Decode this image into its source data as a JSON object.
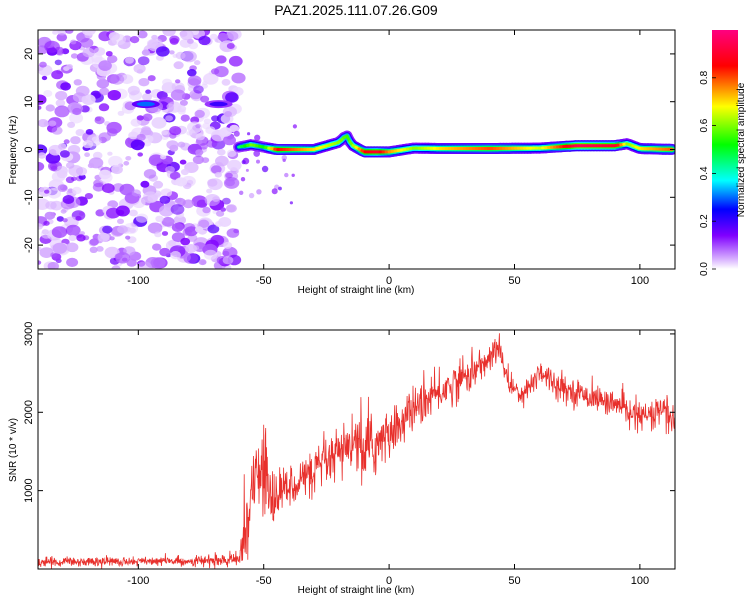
{
  "figure": {
    "title": "PAZ1.2025.111.07.26.G09"
  },
  "chart_data": [
    {
      "type": "heatmap",
      "xlabel": "Height of straight line (km)",
      "ylabel": "Frequency (Hz)",
      "xlim": [
        -140,
        114
      ],
      "ylim": [
        -25,
        25
      ],
      "xticks": [
        -100,
        -50,
        0,
        50,
        100
      ],
      "yticks": [
        -20,
        -10,
        0,
        10,
        20
      ],
      "colorbar": {
        "label": "Normalized spectral amplitude",
        "range": [
          0,
          1
        ],
        "ticks": [
          "0.0",
          "0.2",
          "0.4",
          "0.6",
          "0.8"
        ],
        "colors": [
          "#ffffff",
          "#d9b3ff",
          "#8000ff",
          "#0000ff",
          "#00ffff",
          "#00ff00",
          "#ffff00",
          "#ff0000",
          "#ff0080"
        ]
      },
      "ridge": {
        "x": [
          -60,
          -55,
          -50,
          -45,
          -40,
          -30,
          -20,
          -17,
          -15,
          -10,
          -5,
          0,
          10,
          20,
          40,
          60,
          75,
          90,
          95,
          100,
          114
        ],
        "freq_hz": [
          0.5,
          1.0,
          0.5,
          0,
          0,
          0,
          1.5,
          3.0,
          1.0,
          -0.5,
          -0.5,
          -0.5,
          0.3,
          0.2,
          0.2,
          0.3,
          0.8,
          0.8,
          1.2,
          0.2,
          0.0
        ],
        "amplitude": [
          0.45,
          0.6,
          0.5,
          0.85,
          0.8,
          0.7,
          0.6,
          0.55,
          0.6,
          0.85,
          0.9,
          0.75,
          0.6,
          0.7,
          0.8,
          0.65,
          0.95,
          0.9,
          0.6,
          0.7,
          0.8
        ]
      },
      "noise_region": {
        "x_range": [
          -140,
          -60
        ],
        "amplitude_range": [
          0.02,
          0.18
        ]
      },
      "notable_features": [
        {
          "x": -97,
          "freq_hz": 9.5,
          "amplitude": 0.3
        },
        {
          "x": -68,
          "freq_hz": 9.5,
          "amplitude": 0.2
        }
      ]
    },
    {
      "type": "line",
      "xlabel": "Height of straight line (km)",
      "ylabel": "SNR (10 * v/v)",
      "xlim": [
        -140,
        114
      ],
      "ylim": [
        0,
        3050
      ],
      "xticks": [
        -100,
        -50,
        0,
        50,
        100
      ],
      "yticks": [
        1000,
        2000,
        3000
      ],
      "line_color": "#e8302c",
      "envelope": {
        "x": [
          -140,
          -120,
          -100,
          -80,
          -60,
          -57,
          -54,
          -50,
          -47,
          -44,
          -40,
          -35,
          -30,
          -25,
          -20,
          -15,
          -10,
          -5,
          0,
          10,
          20,
          30,
          35,
          40,
          43,
          45,
          48,
          52,
          56,
          60,
          65,
          70,
          80,
          90,
          100,
          105,
          110,
          114
        ],
        "mean": [
          90,
          95,
          100,
          100,
          110,
          600,
          1100,
          1300,
          900,
          1000,
          1050,
          1150,
          1250,
          1350,
          1450,
          1600,
          1500,
          1600,
          1700,
          2050,
          2250,
          2450,
          2550,
          2680,
          2820,
          2700,
          2350,
          2250,
          2300,
          2550,
          2400,
          2300,
          2200,
          2100,
          1950,
          1950,
          2050,
          1800
        ],
        "spread": [
          55,
          55,
          55,
          55,
          80,
          500,
          400,
          500,
          500,
          300,
          250,
          250,
          250,
          280,
          320,
          350,
          400,
          380,
          280,
          260,
          240,
          220,
          200,
          160,
          200,
          150,
          140,
          140,
          160,
          170,
          160,
          150,
          140,
          150,
          160,
          170,
          250,
          250
        ]
      }
    }
  ]
}
